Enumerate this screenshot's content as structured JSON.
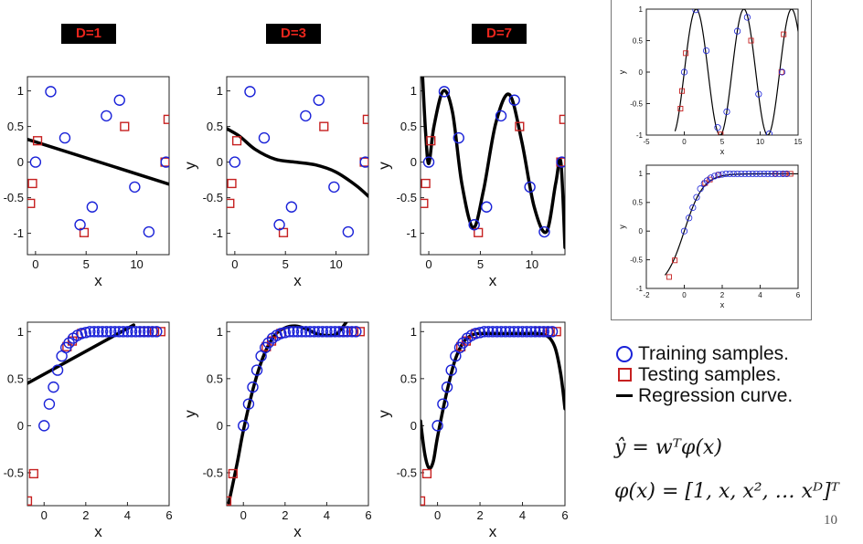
{
  "degree_labels": [
    "D=1",
    "D=3",
    "D=7"
  ],
  "legend": {
    "training": "Training samples.",
    "testing": "Testing samples.",
    "curve": "Regression curve."
  },
  "equations": {
    "model": "ŷ = wᵀφ(x)",
    "basis": "φ(x) = [1, x, x², … xᴰ]ᵀ"
  },
  "page_number": "10",
  "colors": {
    "training": "#1a22d8",
    "testing": "#c62020",
    "curve": "#000000",
    "label_text": "#e8251c"
  },
  "chart_data": [
    {
      "id": "sin-D1",
      "type": "scatter",
      "xlabel": "x",
      "ylabel": "",
      "xlim": [
        -0.8,
        13.2
      ],
      "ylim": [
        -1.3,
        1.2
      ],
      "xticks": [
        0,
        5,
        10
      ],
      "yticks": [
        -1,
        -0.5,
        0,
        0.5,
        1
      ],
      "train": [
        [
          0,
          0
        ],
        [
          1.5,
          0.99
        ],
        [
          2.9,
          0.34
        ],
        [
          4.4,
          -0.88
        ],
        [
          5.6,
          -0.63
        ],
        [
          7,
          0.65
        ],
        [
          8.3,
          0.87
        ],
        [
          9.8,
          -0.35
        ],
        [
          11.2,
          -0.98
        ],
        [
          12.9,
          0
        ]
      ],
      "test": [
        [
          -0.5,
          -0.58
        ],
        [
          -0.3,
          -0.3
        ],
        [
          0.2,
          0.3
        ],
        [
          4.8,
          -0.99
        ],
        [
          8.8,
          0.5
        ],
        [
          12.8,
          0
        ],
        [
          13.1,
          0.6
        ]
      ],
      "curve": [
        [
          -0.8,
          0.32
        ],
        [
          13.2,
          -0.31
        ]
      ]
    },
    {
      "id": "sin-D3",
      "type": "scatter",
      "xlabel": "x",
      "ylabel": "y",
      "xlim": [
        -0.8,
        13.2
      ],
      "ylim": [
        -1.3,
        1.2
      ],
      "xticks": [
        0,
        5,
        10
      ],
      "yticks": [
        -1,
        -0.5,
        0,
        0.5,
        1
      ],
      "train": [
        [
          0,
          0
        ],
        [
          1.5,
          0.99
        ],
        [
          2.9,
          0.34
        ],
        [
          4.4,
          -0.88
        ],
        [
          5.6,
          -0.63
        ],
        [
          7,
          0.65
        ],
        [
          8.3,
          0.87
        ],
        [
          9.8,
          -0.35
        ],
        [
          11.2,
          -0.98
        ],
        [
          12.9,
          0
        ]
      ],
      "test": [
        [
          -0.5,
          -0.58
        ],
        [
          -0.3,
          -0.3
        ],
        [
          0.2,
          0.3
        ],
        [
          4.8,
          -0.99
        ],
        [
          8.8,
          0.5
        ],
        [
          12.8,
          0
        ],
        [
          13.1,
          0.6
        ]
      ],
      "curve": [
        [
          -0.8,
          0.47
        ],
        [
          0.5,
          0.36
        ],
        [
          2,
          0.18
        ],
        [
          4,
          0.04
        ],
        [
          6,
          0.0
        ],
        [
          8,
          -0.04
        ],
        [
          10,
          -0.14
        ],
        [
          12,
          -0.33
        ],
        [
          13.2,
          -0.48
        ]
      ]
    },
    {
      "id": "sin-D7",
      "type": "scatter",
      "xlabel": "x",
      "ylabel": "y",
      "xlim": [
        -0.8,
        13.2
      ],
      "ylim": [
        -1.3,
        1.2
      ],
      "xticks": [
        0,
        5,
        10
      ],
      "yticks": [
        -1,
        -0.5,
        0,
        0.5,
        1
      ],
      "train": [
        [
          0,
          0
        ],
        [
          1.5,
          0.99
        ],
        [
          2.9,
          0.34
        ],
        [
          4.4,
          -0.88
        ],
        [
          5.6,
          -0.63
        ],
        [
          7,
          0.65
        ],
        [
          8.3,
          0.87
        ],
        [
          9.8,
          -0.35
        ],
        [
          11.2,
          -0.98
        ],
        [
          12.9,
          0
        ]
      ],
      "test": [
        [
          -0.5,
          -0.58
        ],
        [
          -0.3,
          -0.3
        ],
        [
          0.2,
          0.3
        ],
        [
          4.8,
          -0.99
        ],
        [
          8.8,
          0.5
        ],
        [
          12.8,
          0
        ],
        [
          13.1,
          0.6
        ]
      ],
      "curve": [
        [
          -0.6,
          1.2
        ],
        [
          -0.3,
          0.4
        ],
        [
          0,
          -0.02
        ],
        [
          0.5,
          0.5
        ],
        [
          1.4,
          1.0
        ],
        [
          2.3,
          0.7
        ],
        [
          3.2,
          -0.3
        ],
        [
          4.3,
          -0.92
        ],
        [
          5.3,
          -0.4
        ],
        [
          6.5,
          0.55
        ],
        [
          7.8,
          0.95
        ],
        [
          9,
          0.3
        ],
        [
          10.2,
          -0.62
        ],
        [
          11.4,
          -0.98
        ],
        [
          12.3,
          -0.3
        ],
        [
          12.8,
          0.0
        ],
        [
          13.2,
          -1.2
        ]
      ]
    },
    {
      "id": "tanh-D1",
      "type": "scatter",
      "xlabel": "x",
      "ylabel": "",
      "xlim": [
        -0.8,
        6
      ],
      "ylim": [
        -0.85,
        1.1
      ],
      "xticks": [
        0,
        2,
        4,
        6
      ],
      "yticks": [
        -0.5,
        0,
        0.5,
        1
      ],
      "train": [
        [
          0,
          0
        ],
        [
          0.25,
          0.23
        ],
        [
          0.45,
          0.41
        ],
        [
          0.65,
          0.59
        ],
        [
          0.85,
          0.74
        ],
        [
          1.05,
          0.83
        ],
        [
          1.2,
          0.88
        ],
        [
          1.4,
          0.93
        ],
        [
          1.6,
          0.96
        ],
        [
          1.8,
          0.98
        ],
        [
          2,
          0.99
        ],
        [
          2.2,
          1
        ],
        [
          2.4,
          1
        ],
        [
          2.6,
          1
        ],
        [
          2.8,
          1
        ],
        [
          3,
          1
        ],
        [
          3.2,
          1
        ],
        [
          3.4,
          1
        ],
        [
          3.6,
          1
        ],
        [
          3.8,
          1
        ],
        [
          4,
          1
        ],
        [
          4.2,
          1
        ],
        [
          4.4,
          1
        ],
        [
          4.6,
          1
        ],
        [
          4.8,
          1
        ],
        [
          5,
          1
        ],
        [
          5.2,
          1
        ],
        [
          5.4,
          1
        ]
      ],
      "test": [
        [
          -0.8,
          -0.8
        ],
        [
          -0.5,
          -0.51
        ],
        [
          1.1,
          0.84
        ],
        [
          1.35,
          0.9
        ],
        [
          1.8,
          0.98
        ],
        [
          4.8,
          1
        ],
        [
          5.3,
          1
        ],
        [
          5.6,
          1
        ]
      ],
      "curve": [
        [
          -0.8,
          0.45
        ],
        [
          4.3,
          1.07
        ]
      ]
    },
    {
      "id": "tanh-D3",
      "type": "scatter",
      "xlabel": "x",
      "ylabel": "y",
      "xlim": [
        -0.8,
        6
      ],
      "ylim": [
        -0.85,
        1.1
      ],
      "xticks": [
        0,
        2,
        4,
        6
      ],
      "yticks": [
        -0.5,
        0,
        0.5,
        1
      ],
      "train": [
        [
          0,
          0
        ],
        [
          0.25,
          0.23
        ],
        [
          0.45,
          0.41
        ],
        [
          0.65,
          0.59
        ],
        [
          0.85,
          0.74
        ],
        [
          1.05,
          0.83
        ],
        [
          1.2,
          0.88
        ],
        [
          1.4,
          0.93
        ],
        [
          1.6,
          0.96
        ],
        [
          1.8,
          0.98
        ],
        [
          2,
          0.99
        ],
        [
          2.2,
          1
        ],
        [
          2.4,
          1
        ],
        [
          2.6,
          1
        ],
        [
          2.8,
          1
        ],
        [
          3,
          1
        ],
        [
          3.2,
          1
        ],
        [
          3.4,
          1
        ],
        [
          3.6,
          1
        ],
        [
          3.8,
          1
        ],
        [
          4,
          1
        ],
        [
          4.2,
          1
        ],
        [
          4.4,
          1
        ],
        [
          4.6,
          1
        ],
        [
          4.8,
          1
        ],
        [
          5,
          1
        ],
        [
          5.2,
          1
        ],
        [
          5.4,
          1
        ]
      ],
      "test": [
        [
          -0.8,
          -0.8
        ],
        [
          -0.5,
          -0.51
        ],
        [
          1.1,
          0.84
        ],
        [
          1.35,
          0.9
        ],
        [
          1.8,
          0.98
        ],
        [
          4.8,
          1
        ],
        [
          5.3,
          1
        ],
        [
          5.6,
          1
        ]
      ],
      "curve": [
        [
          -0.7,
          -0.82
        ],
        [
          -0.3,
          -0.4
        ],
        [
          0,
          -0.05
        ],
        [
          0.5,
          0.42
        ],
        [
          1,
          0.76
        ],
        [
          1.5,
          0.96
        ],
        [
          2,
          1.04
        ],
        [
          2.5,
          1.06
        ],
        [
          3,
          1.03
        ],
        [
          3.5,
          0.98
        ],
        [
          4,
          0.96
        ],
        [
          4.5,
          0.98
        ],
        [
          5,
          1.12
        ]
      ]
    },
    {
      "id": "tanh-D7",
      "type": "scatter",
      "xlabel": "x",
      "ylabel": "y",
      "xlim": [
        -0.8,
        6
      ],
      "ylim": [
        -0.85,
        1.1
      ],
      "xticks": [
        0,
        2,
        4,
        6
      ],
      "yticks": [
        -0.5,
        0,
        0.5,
        1
      ],
      "train": [
        [
          0,
          0
        ],
        [
          0.25,
          0.23
        ],
        [
          0.45,
          0.41
        ],
        [
          0.65,
          0.59
        ],
        [
          0.85,
          0.74
        ],
        [
          1.05,
          0.83
        ],
        [
          1.2,
          0.88
        ],
        [
          1.4,
          0.93
        ],
        [
          1.6,
          0.96
        ],
        [
          1.8,
          0.98
        ],
        [
          2,
          0.99
        ],
        [
          2.2,
          1
        ],
        [
          2.4,
          1
        ],
        [
          2.6,
          1
        ],
        [
          2.8,
          1
        ],
        [
          3,
          1
        ],
        [
          3.2,
          1
        ],
        [
          3.4,
          1
        ],
        [
          3.6,
          1
        ],
        [
          3.8,
          1
        ],
        [
          4,
          1
        ],
        [
          4.2,
          1
        ],
        [
          4.4,
          1
        ],
        [
          4.6,
          1
        ],
        [
          4.8,
          1
        ],
        [
          5,
          1
        ],
        [
          5.2,
          1
        ],
        [
          5.4,
          1
        ]
      ],
      "test": [
        [
          -0.8,
          -0.8
        ],
        [
          -0.5,
          -0.51
        ],
        [
          1.1,
          0.84
        ],
        [
          1.35,
          0.9
        ],
        [
          1.8,
          0.98
        ],
        [
          4.8,
          1
        ],
        [
          5.3,
          1
        ],
        [
          5.6,
          1
        ]
      ],
      "curve": [
        [
          -0.8,
          0.05
        ],
        [
          -0.6,
          -0.3
        ],
        [
          -0.4,
          -0.45
        ],
        [
          -0.2,
          -0.38
        ],
        [
          0,
          -0.12
        ],
        [
          0.4,
          0.32
        ],
        [
          0.8,
          0.68
        ],
        [
          1.2,
          0.88
        ],
        [
          1.6,
          0.96
        ],
        [
          2,
          0.98
        ],
        [
          3,
          0.98
        ],
        [
          4,
          0.98
        ],
        [
          5,
          0.97
        ],
        [
          5.5,
          0.85
        ],
        [
          5.8,
          0.55
        ],
        [
          6,
          0.18
        ]
      ]
    },
    {
      "id": "inset-sin",
      "type": "scatter",
      "xlabel": "x",
      "ylabel": "y",
      "xlim": [
        -5,
        15
      ],
      "ylim": [
        -1,
        1
      ],
      "xticks": [
        -5,
        0,
        5,
        10,
        15
      ],
      "yticks": [
        -1,
        -0.5,
        0,
        0.5,
        1
      ],
      "train": [
        [
          0,
          0
        ],
        [
          1.5,
          0.99
        ],
        [
          2.9,
          0.34
        ],
        [
          4.4,
          -0.88
        ],
        [
          5.6,
          -0.63
        ],
        [
          7,
          0.65
        ],
        [
          8.3,
          0.87
        ],
        [
          9.8,
          -0.35
        ],
        [
          11.2,
          -0.98
        ],
        [
          12.9,
          0
        ]
      ],
      "test": [
        [
          -0.5,
          -0.58
        ],
        [
          -0.3,
          -0.3
        ],
        [
          0.2,
          0.3
        ],
        [
          4.8,
          -0.99
        ],
        [
          8.8,
          0.5
        ],
        [
          12.8,
          0
        ],
        [
          13.1,
          0.6
        ]
      ],
      "curve_fn": "sin",
      "curve_range": [
        -1.2,
        15
      ]
    },
    {
      "id": "inset-tanh",
      "type": "scatter",
      "xlabel": "x",
      "ylabel": "y",
      "xlim": [
        -2,
        6
      ],
      "ylim": [
        -1,
        1.15
      ],
      "xticks": [
        -2,
        0,
        2,
        4,
        6
      ],
      "yticks": [
        -1,
        -0.5,
        0,
        0.5,
        1
      ],
      "train": [
        [
          0,
          0
        ],
        [
          0.25,
          0.23
        ],
        [
          0.45,
          0.41
        ],
        [
          0.65,
          0.59
        ],
        [
          0.85,
          0.74
        ],
        [
          1.05,
          0.83
        ],
        [
          1.2,
          0.88
        ],
        [
          1.4,
          0.93
        ],
        [
          1.6,
          0.96
        ],
        [
          1.8,
          0.98
        ],
        [
          2,
          0.99
        ],
        [
          2.2,
          1
        ],
        [
          2.4,
          1
        ],
        [
          2.6,
          1
        ],
        [
          2.8,
          1
        ],
        [
          3,
          1
        ],
        [
          3.2,
          1
        ],
        [
          3.4,
          1
        ],
        [
          3.6,
          1
        ],
        [
          3.8,
          1
        ],
        [
          4,
          1
        ],
        [
          4.2,
          1
        ],
        [
          4.4,
          1
        ],
        [
          4.6,
          1
        ],
        [
          4.8,
          1
        ],
        [
          5,
          1
        ],
        [
          5.2,
          1
        ],
        [
          5.4,
          1
        ]
      ],
      "test": [
        [
          -0.8,
          -0.8
        ],
        [
          -0.5,
          -0.51
        ],
        [
          1.1,
          0.84
        ],
        [
          1.35,
          0.9
        ],
        [
          1.8,
          0.98
        ],
        [
          4.8,
          1
        ],
        [
          5.3,
          1
        ],
        [
          5.6,
          1
        ]
      ],
      "curve_fn": "tanh",
      "curve_range": [
        -1,
        6
      ]
    }
  ]
}
